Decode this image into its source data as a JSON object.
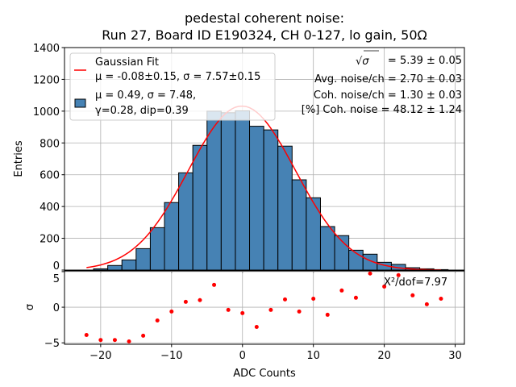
{
  "chart_data": [
    {
      "type": "bar",
      "title_line1": "pedestal coherent noise:",
      "title_line2": "Run 27, Board ID E190324, CH 0-127, lo gain, 50Ω",
      "ylabel": "Entries",
      "xlim": [
        -25.1,
        31.3
      ],
      "ylim": [
        0,
        1400
      ],
      "yticks": [
        0,
        200,
        400,
        600,
        800,
        1000,
        1200,
        1400
      ],
      "xticks": [
        -20,
        -10,
        0,
        10,
        20,
        30
      ],
      "grid": true,
      "bin_width": 2,
      "bin_centers": [
        -20,
        -18,
        -16,
        -14,
        -12,
        -10,
        -8,
        -6,
        -4,
        -2,
        0,
        2,
        4,
        6,
        8,
        10,
        12,
        14,
        16,
        18,
        20,
        22,
        24,
        26,
        28
      ],
      "values": [
        8,
        29,
        64,
        135,
        267,
        425,
        612,
        785,
        1000,
        990,
        1002,
        905,
        882,
        780,
        568,
        455,
        274,
        217,
        125,
        100,
        49,
        36,
        15,
        8,
        3
      ],
      "bar_color": "#4682b4",
      "fit": {
        "mu": -0.08,
        "sigma": 7.57,
        "amplitude": 1032,
        "x_range": [
          -22,
          28
        ],
        "color": "#ff0000"
      },
      "legend": {
        "placement": "top-left",
        "fit_label_1": "Gaussian Fit",
        "fit_label_2": "μ = -0.08±0.15, σ = 7.57±0.15",
        "hist_label_1": "μ = 0.49, σ = 7.48,",
        "hist_label_2": "γ=0.28, dip=0.39"
      },
      "annotations": {
        "sigma_value": "= 5.39 ± 0.05",
        "avg_noise": "Avg. noise/ch = 2.70 ± 0.03",
        "coh_noise": "Coh. noise/ch = 1.30 ± 0.03",
        "coh_percent": "[%] Coh. noise = 48.12  ± 1.24"
      }
    },
    {
      "type": "scatter",
      "xlabel": "ADC Counts",
      "ylabel": "σ",
      "xlim": [
        -25.1,
        31.3
      ],
      "ylim": [
        -5.2,
        5.1
      ],
      "yticks": [
        -5,
        0,
        5
      ],
      "xticks": [
        -20,
        -10,
        0,
        10,
        20,
        30
      ],
      "grid": true,
      "x": [
        -22,
        -20,
        -18,
        -16,
        -14,
        -12,
        -10,
        -8,
        -6,
        -4,
        -2,
        0,
        2,
        4,
        6,
        8,
        10,
        12,
        14,
        16,
        18,
        20,
        22,
        24,
        26,
        28
      ],
      "y": [
        -3.9,
        -4.6,
        -4.6,
        -4.8,
        -4.0,
        -1.86,
        -0.6,
        0.76,
        1.0,
        3.14,
        -0.38,
        -0.83,
        -2.77,
        -0.38,
        1.1,
        -0.6,
        1.2,
        -1.06,
        2.35,
        1.33,
        4.73,
        2.9,
        4.5,
        1.67,
        0.42,
        1.2
      ],
      "point_color": "#ff0000",
      "annotation": "X²/dof=7.97"
    }
  ]
}
